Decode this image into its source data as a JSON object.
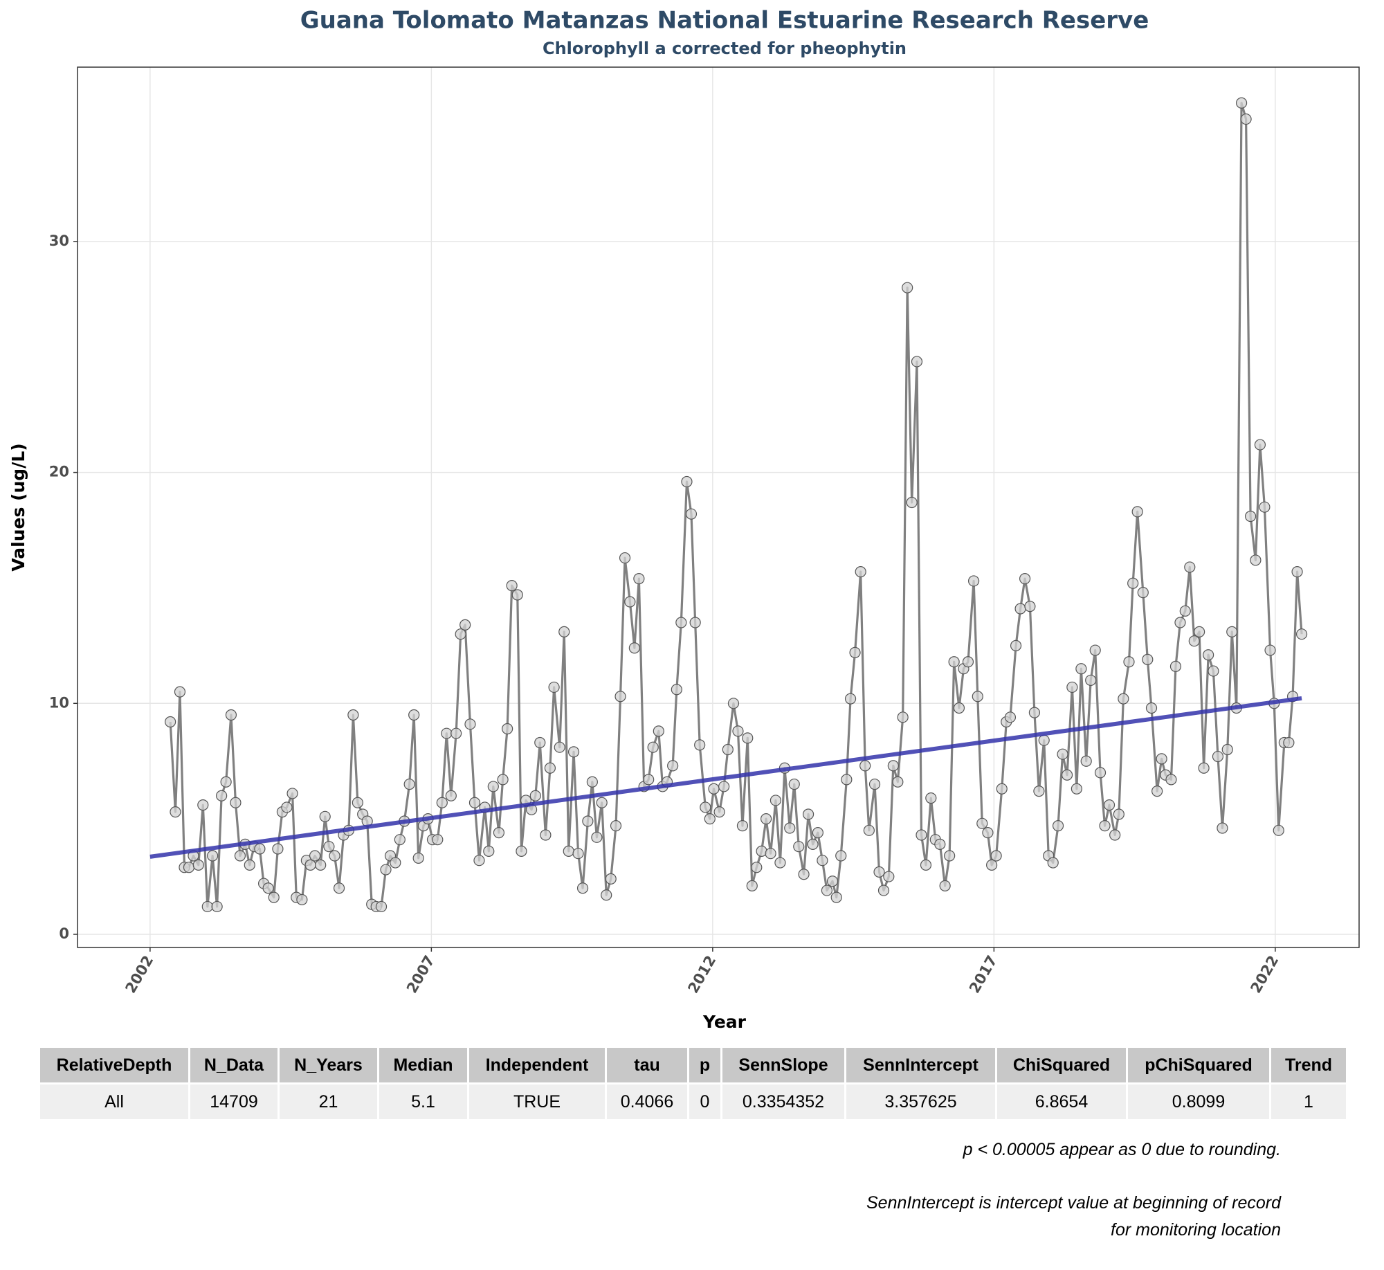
{
  "chart_data": {
    "type": "line",
    "title": "Guana Tolomato Matanzas National Estuarine Research Reserve",
    "subtitle": "Chlorophyll a corrected for pheophytin",
    "x_label": "Year",
    "y_label": "Values (ug/L)",
    "xlim": [
      2000.71,
      2023.49
    ],
    "ylim": [
      -0.57,
      37.55
    ],
    "xticks": [
      2002,
      2007,
      2012,
      2017,
      2022
    ],
    "yticks": [
      0,
      10,
      20,
      30
    ],
    "grid": true,
    "series": [
      {
        "color": "#808080",
        "marker_fill": "#d3d3d3",
        "marker_stroke": "#555555",
        "x": [
          2002.36,
          2002.45,
          2002.53,
          2002.61,
          2002.69,
          2002.77,
          2002.86,
          2002.94,
          2003.02,
          2003.11,
          2003.19,
          2003.27,
          2003.35,
          2003.44,
          2003.52,
          2003.6,
          2003.69,
          2003.77,
          2003.85,
          2003.95,
          2004.02,
          2004.1,
          2004.2,
          2004.27,
          2004.35,
          2004.43,
          2004.53,
          2004.6,
          2004.7,
          2004.78,
          2004.85,
          2004.93,
          2005.03,
          2005.11,
          2005.18,
          2005.28,
          2005.36,
          2005.44,
          2005.53,
          2005.61,
          2005.69,
          2005.78,
          2005.86,
          2005.94,
          2006.02,
          2006.11,
          2006.19,
          2006.27,
          2006.36,
          2006.44,
          2006.52,
          2006.61,
          2006.69,
          2006.77,
          2006.86,
          2006.94,
          2007.02,
          2007.11,
          2007.19,
          2007.27,
          2007.35,
          2007.44,
          2007.52,
          2007.6,
          2007.69,
          2007.77,
          2007.85,
          2007.95,
          2008.02,
          2008.1,
          2008.2,
          2008.27,
          2008.35,
          2008.43,
          2008.53,
          2008.6,
          2008.68,
          2008.78,
          2008.85,
          2008.93,
          2009.03,
          2009.11,
          2009.18,
          2009.28,
          2009.36,
          2009.44,
          2009.53,
          2009.61,
          2009.69,
          2009.78,
          2009.86,
          2009.94,
          2010.03,
          2010.11,
          2010.19,
          2010.28,
          2010.36,
          2010.44,
          2010.53,
          2010.61,
          2010.69,
          2010.78,
          2010.86,
          2010.94,
          2011.04,
          2011.11,
          2011.19,
          2011.29,
          2011.36,
          2011.44,
          2011.54,
          2011.62,
          2011.69,
          2011.77,
          2011.87,
          2011.95,
          2012.02,
          2012.12,
          2012.2,
          2012.27,
          2012.37,
          2012.45,
          2012.53,
          2012.62,
          2012.7,
          2012.78,
          2012.87,
          2012.95,
          2013.03,
          2013.12,
          2013.2,
          2013.28,
          2013.37,
          2013.45,
          2013.53,
          2013.62,
          2013.7,
          2013.78,
          2013.87,
          2013.95,
          2014.03,
          2014.13,
          2014.2,
          2014.28,
          2014.38,
          2014.45,
          2014.53,
          2014.63,
          2014.71,
          2014.78,
          2014.88,
          2014.96,
          2015.04,
          2015.13,
          2015.21,
          2015.29,
          2015.38,
          2015.46,
          2015.54,
          2015.63,
          2015.71,
          2015.79,
          2015.88,
          2015.96,
          2016.04,
          2016.13,
          2016.21,
          2016.29,
          2016.38,
          2016.46,
          2016.54,
          2016.64,
          2016.71,
          2016.79,
          2016.89,
          2016.96,
          2017.04,
          2017.14,
          2017.22,
          2017.29,
          2017.39,
          2017.47,
          2017.55,
          2017.64,
          2017.72,
          2017.8,
          2017.89,
          2017.97,
          2018.05,
          2018.14,
          2018.22,
          2018.3,
          2018.39,
          2018.47,
          2018.55,
          2018.64,
          2018.72,
          2018.8,
          2018.89,
          2018.97,
          2019.05,
          2019.15,
          2019.22,
          2019.3,
          2019.4,
          2019.47,
          2019.55,
          2019.65,
          2019.73,
          2019.8,
          2019.9,
          2019.98,
          2020.05,
          2020.15,
          2020.23,
          2020.31,
          2020.4,
          2020.48,
          2020.56,
          2020.65,
          2020.73,
          2020.81,
          2020.9,
          2020.98,
          2021.06,
          2021.15,
          2021.23,
          2021.31,
          2021.4,
          2021.48,
          2021.56,
          2021.65,
          2021.73,
          2021.81,
          2021.91,
          2021.98,
          2022.06,
          2022.16,
          2022.24,
          2022.31,
          2022.39,
          2022.47
        ],
        "values": [
          9.2,
          5.3,
          10.5,
          2.9,
          2.9,
          3.4,
          3.0,
          5.6,
          1.2,
          3.4,
          1.2,
          6.0,
          6.6,
          9.5,
          5.7,
          3.4,
          3.9,
          3.0,
          3.8,
          3.7,
          2.2,
          2.0,
          1.6,
          3.7,
          5.3,
          5.5,
          6.1,
          1.6,
          1.5,
          3.2,
          3.0,
          3.4,
          3.0,
          5.1,
          3.8,
          3.4,
          2.0,
          4.3,
          4.5,
          9.5,
          5.7,
          5.2,
          4.9,
          1.3,
          1.2,
          1.2,
          2.8,
          3.4,
          3.1,
          4.1,
          4.9,
          6.5,
          9.5,
          3.3,
          4.7,
          5.0,
          4.1,
          4.1,
          5.7,
          8.7,
          6.0,
          8.7,
          13.0,
          13.4,
          9.1,
          5.7,
          3.2,
          5.5,
          3.6,
          6.4,
          4.4,
          6.7,
          8.9,
          15.1,
          14.7,
          3.6,
          5.8,
          5.4,
          6.0,
          8.3,
          4.3,
          7.2,
          10.7,
          8.1,
          13.1,
          3.6,
          7.9,
          3.5,
          2.0,
          4.9,
          6.6,
          4.2,
          5.7,
          1.7,
          2.4,
          4.7,
          10.3,
          16.3,
          14.4,
          12.4,
          15.4,
          6.4,
          6.7,
          8.1,
          8.8,
          6.4,
          6.6,
          7.3,
          10.6,
          13.5,
          19.6,
          18.2,
          13.5,
          8.2,
          5.5,
          5.0,
          6.3,
          5.3,
          6.4,
          8.0,
          10.0,
          8.8,
          4.7,
          8.5,
          2.1,
          2.9,
          3.6,
          5.0,
          3.5,
          5.8,
          3.1,
          7.2,
          4.6,
          6.5,
          3.8,
          2.6,
          5.2,
          3.9,
          4.4,
          3.2,
          1.9,
          2.3,
          1.6,
          3.4,
          6.7,
          10.2,
          12.2,
          15.7,
          7.3,
          4.5,
          6.5,
          2.7,
          1.9,
          2.5,
          7.3,
          6.6,
          9.4,
          28.0,
          18.7,
          24.8,
          4.3,
          3.0,
          5.9,
          4.1,
          3.9,
          2.1,
          3.4,
          11.8,
          9.8,
          11.5,
          11.8,
          15.3,
          10.3,
          4.8,
          4.4,
          3.0,
          3.4,
          6.3,
          9.2,
          9.4,
          12.5,
          14.1,
          15.4,
          14.2,
          9.6,
          6.2,
          8.4,
          3.4,
          3.1,
          4.7,
          7.8,
          6.9,
          10.7,
          6.3,
          11.5,
          7.5,
          11.0,
          12.3,
          7.0,
          4.7,
          5.6,
          4.3,
          5.2,
          10.2,
          11.8,
          15.2,
          18.3,
          14.8,
          11.9,
          9.8,
          6.2,
          7.6,
          6.9,
          6.7,
          11.6,
          13.5,
          14.0,
          15.9,
          12.7,
          13.1,
          7.2,
          12.1,
          11.4,
          7.7,
          4.6,
          8.0,
          13.1,
          9.8,
          36.0,
          35.3,
          18.1,
          16.2,
          21.2,
          18.5,
          12.3,
          10.0,
          4.5,
          8.3,
          8.3,
          10.3,
          15.7,
          13.0
        ]
      }
    ],
    "trend": {
      "color": "#3333aa",
      "x": [
        2002,
        2022.47
      ],
      "values": [
        3.36,
        10.22
      ]
    }
  },
  "table": {
    "columns": [
      "RelativeDepth",
      "N_Data",
      "N_Years",
      "Median",
      "Independent",
      "tau",
      "p",
      "SennSlope",
      "SennIntercept",
      "ChiSquared",
      "pChiSquared",
      "Trend"
    ],
    "rows": [
      [
        "All",
        "14709",
        "21",
        "5.1",
        "TRUE",
        "0.4066",
        "0",
        "0.3354352",
        "3.357625",
        "6.8654",
        "0.8099",
        "1"
      ]
    ]
  },
  "notes": [
    "p < 0.00005 appear as 0 due to rounding.",
    "SennIntercept is intercept value at beginning of record for monitoring location"
  ]
}
